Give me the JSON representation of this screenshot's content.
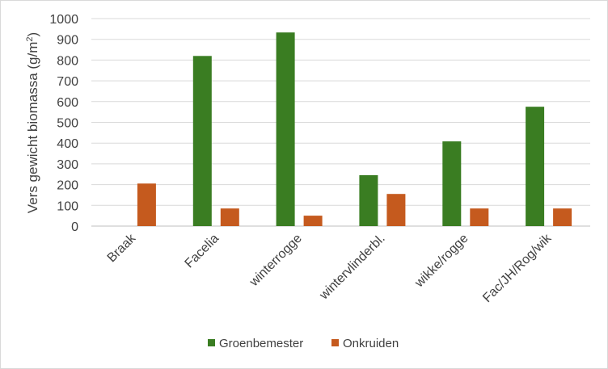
{
  "chart_data": {
    "type": "bar",
    "categories": [
      "Braak",
      "Facelia",
      "winterrogge",
      "wintervlinderbl.",
      "wikke/rogge",
      "Fac/JH/Rog/wik"
    ],
    "series": [
      {
        "name": "Groenbemester",
        "color": "#3a7d22",
        "values": [
          0,
          820,
          933,
          245,
          408,
          575
        ]
      },
      {
        "name": "Onkruiden",
        "color": "#c55a1e",
        "values": [
          205,
          85,
          50,
          155,
          85,
          85
        ]
      }
    ],
    "ylabel": "Vers gewicht biomassa (g/m",
    "ylabel_sup": "2",
    "ylabel_end": ")",
    "ylim": [
      0,
      1000
    ],
    "yticks": [
      0,
      100,
      200,
      300,
      400,
      500,
      600,
      700,
      800,
      900,
      1000
    ],
    "grid": true,
    "legend_position": "bottom"
  }
}
